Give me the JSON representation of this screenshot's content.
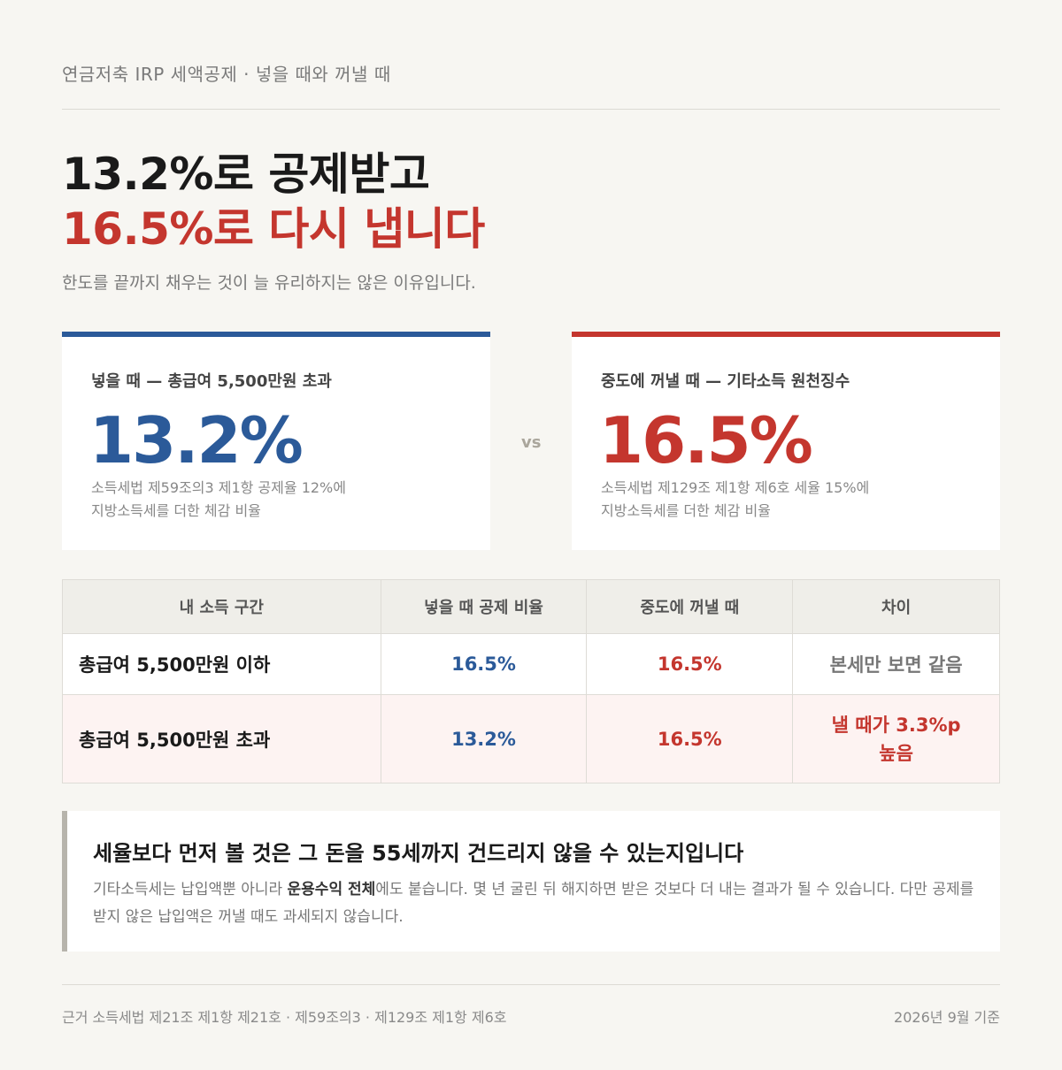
{
  "header": {
    "kicker": "연금저축 IRP 세액공제 · 넣을 때와 꺼낼 때",
    "headline_line1": "13.2%로 공제받고",
    "headline_line2": "16.5%로 다시 냅니다",
    "subhead": "한도를 끝까지 채우는 것이 늘 유리하지는 않은 이유입니다."
  },
  "cards": {
    "left": {
      "label": "넣을 때 — 총급여 5,500만원 초과",
      "value": "13.2%",
      "note_line1": "소득세법 제59조의3 제1항 공제율 12%에",
      "note_line2": "지방소득세를 더한 체감 비율"
    },
    "vs": "vs",
    "right": {
      "label": "중도에 꺼낼 때 — 기타소득 원천징수",
      "value": "16.5%",
      "note_line1": "소득세법 제129조 제1항 제6호 세율 15%에",
      "note_line2": "지방소득세를 더한 체감 비율"
    }
  },
  "table": {
    "headers": [
      "내 소득 구간",
      "넣을 때 공제 비율",
      "중도에 꺼낼 때",
      "차이"
    ],
    "rows": [
      {
        "band": "총급여 5,500만원 이하",
        "in_rate": "16.5%",
        "out_rate": "16.5%",
        "diff": "본세만 보면 같음"
      },
      {
        "band": "총급여 5,500만원 초과",
        "in_rate": "13.2%",
        "out_rate": "16.5%",
        "diff_line1": "낼 때가 3.3%p",
        "diff_line2": "높음"
      }
    ]
  },
  "callout": {
    "title": "세율보다 먼저 볼 것은 그 돈을 55세까지 건드리지 않을 수 있는지입니다",
    "body_pre": "기타소득세는 납입액뿐 아니라 ",
    "body_bold": "운용수익 전체",
    "body_post": "에도 붙습니다. 몇 년 굴린 뒤 해지하면 받은 것보다 더 내는 결과가 될 수 있습니다. 다만 공제를 받지 않은 납입액은 꺼낼 때도 과세되지 않습니다."
  },
  "footer": {
    "source": "근거 소득세법 제21조 제1항 제21호 · 제59조의3 · 제129조 제1항 제6호",
    "date": "2026년 9월 기준"
  }
}
